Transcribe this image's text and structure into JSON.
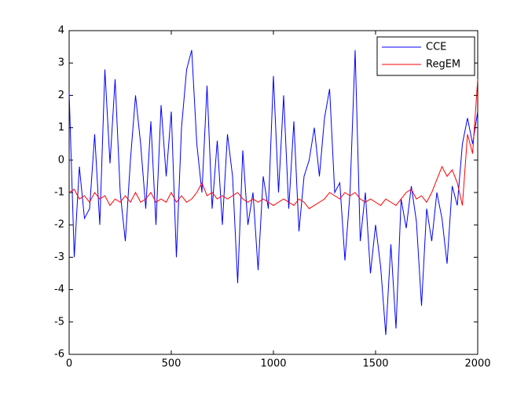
{
  "chart_data": {
    "type": "line",
    "x": [
      0,
      25,
      50,
      75,
      100,
      125,
      150,
      175,
      200,
      225,
      250,
      275,
      300,
      325,
      350,
      375,
      400,
      425,
      450,
      475,
      500,
      525,
      550,
      575,
      600,
      625,
      650,
      675,
      700,
      725,
      750,
      775,
      800,
      825,
      850,
      875,
      900,
      925,
      950,
      975,
      1000,
      1025,
      1050,
      1075,
      1100,
      1125,
      1150,
      1175,
      1200,
      1225,
      1250,
      1275,
      1300,
      1325,
      1350,
      1375,
      1400,
      1425,
      1450,
      1475,
      1500,
      1525,
      1550,
      1575,
      1600,
      1625,
      1650,
      1675,
      1700,
      1725,
      1750,
      1775,
      1800,
      1825,
      1850,
      1875,
      1900,
      1925,
      1950,
      1975,
      2000
    ],
    "series": [
      {
        "name": "CCE",
        "color": "#0000ff",
        "values": [
          2.1,
          -3.0,
          -0.2,
          -1.8,
          -1.5,
          0.8,
          -2.0,
          2.8,
          -0.1,
          2.5,
          -1.0,
          -2.5,
          0.0,
          2.0,
          0.5,
          -1.5,
          1.2,
          -2.0,
          1.7,
          -0.5,
          1.5,
          -3.0,
          1.0,
          2.8,
          3.4,
          0.5,
          -1.0,
          2.3,
          -1.5,
          0.6,
          -2.0,
          0.8,
          -0.5,
          -3.8,
          0.3,
          -2.0,
          -1.0,
          -3.4,
          -0.5,
          -1.5,
          2.6,
          -1.0,
          2.0,
          -1.5,
          1.2,
          -2.2,
          -0.5,
          0.0,
          1.0,
          -0.5,
          1.3,
          2.2,
          -1.0,
          -0.7,
          -3.1,
          -1.0,
          3.4,
          -2.5,
          -1.0,
          -3.5,
          -2.0,
          -3.3,
          -5.4,
          -2.6,
          -5.2,
          -1.2,
          -2.1,
          -0.8,
          -1.9,
          -4.5,
          -1.5,
          -2.5,
          -1.0,
          -1.8,
          -3.2,
          -0.8,
          -1.4,
          0.5,
          1.3,
          0.5,
          1.5
        ]
      },
      {
        "name": "RegEM",
        "color": "#ff0000",
        "values": [
          -1.0,
          -0.9,
          -1.2,
          -1.1,
          -1.3,
          -1.0,
          -1.2,
          -1.1,
          -1.4,
          -1.2,
          -1.3,
          -1.1,
          -1.3,
          -1.0,
          -1.3,
          -1.2,
          -1.0,
          -1.3,
          -1.2,
          -1.3,
          -1.0,
          -1.3,
          -1.1,
          -1.3,
          -1.2,
          -1.0,
          -0.7,
          -1.1,
          -1.0,
          -1.2,
          -1.1,
          -1.2,
          -1.1,
          -1.0,
          -1.2,
          -1.3,
          -1.2,
          -1.3,
          -1.2,
          -1.3,
          -1.4,
          -1.3,
          -1.2,
          -1.3,
          -1.4,
          -1.2,
          -1.3,
          -1.5,
          -1.4,
          -1.3,
          -1.2,
          -1.0,
          -1.1,
          -1.2,
          -1.0,
          -1.1,
          -1.0,
          -1.2,
          -1.3,
          -1.2,
          -1.3,
          -1.4,
          -1.2,
          -1.3,
          -1.4,
          -1.2,
          -1.0,
          -0.9,
          -1.2,
          -1.1,
          -1.3,
          -1.0,
          -0.6,
          -0.2,
          -0.5,
          -0.3,
          -0.7,
          -1.4,
          0.8,
          0.2,
          2.5
        ]
      }
    ],
    "xlim": [
      0,
      2000
    ],
    "xticks": [
      0,
      500,
      1000,
      1500,
      2000
    ],
    "ylim": [
      -6,
      4
    ],
    "yticks": [
      -6,
      -5,
      -4,
      -3,
      -2,
      -1,
      0,
      1,
      2,
      3,
      4
    ],
    "legend": "upper-right"
  }
}
